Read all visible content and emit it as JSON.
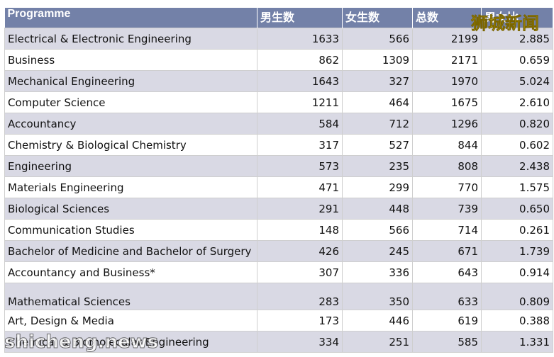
{
  "table": {
    "headers": [
      "Programme",
      "男生数",
      "女生数",
      "总数",
      "男女比"
    ],
    "rows": [
      {
        "programme": "Electrical & Electronic Engineering",
        "male": "1633",
        "female": "566",
        "total": "2199",
        "ratio": "2.885"
      },
      {
        "programme": "Business",
        "male": "862",
        "female": "1309",
        "total": "2171",
        "ratio": "0.659"
      },
      {
        "programme": "Mechanical Engineering",
        "male": "1643",
        "female": "327",
        "total": "1970",
        "ratio": "5.024"
      },
      {
        "programme": "Computer Science",
        "male": "1211",
        "female": "464",
        "total": "1675",
        "ratio": "2.610"
      },
      {
        "programme": "Accountancy",
        "male": "584",
        "female": "712",
        "total": "1296",
        "ratio": "0.820"
      },
      {
        "programme": "Chemistry & Biological Chemistry",
        "male": "317",
        "female": "527",
        "total": "844",
        "ratio": "0.602"
      },
      {
        "programme": "Engineering",
        "male": "573",
        "female": "235",
        "total": "808",
        "ratio": "2.438"
      },
      {
        "programme": "Materials Engineering",
        "male": "471",
        "female": "299",
        "total": "770",
        "ratio": "1.575"
      },
      {
        "programme": "Biological Sciences",
        "male": "291",
        "female": "448",
        "total": "739",
        "ratio": "0.650"
      },
      {
        "programme": "Communication Studies",
        "male": "148",
        "female": "566",
        "total": "714",
        "ratio": "0.261"
      },
      {
        "programme": "Bachelor of Medicine and Bachelor of Surgery",
        "male": "426",
        "female": "245",
        "total": "671",
        "ratio": "1.739"
      },
      {
        "programme": "Accountancy and Business*",
        "male": "307",
        "female": "336",
        "total": "643",
        "ratio": "0.914"
      },
      {
        "programme": "Mathematical Sciences",
        "male": "283",
        "female": "350",
        "total": "633",
        "ratio": "0.809"
      },
      {
        "programme": "Art, Design & Media",
        "male": "173",
        "female": "446",
        "total": "619",
        "ratio": "0.388"
      },
      {
        "programme": "Chemical & Biomolecular Engineering",
        "male": "334",
        "female": "251",
        "total": "585",
        "ratio": "1.331"
      }
    ]
  },
  "watermarks": {
    "chinese": "狮城新闻",
    "english": "shicheng.news"
  },
  "colors": {
    "header_bg": "#7381a8",
    "row_shade": "#d9d9e4",
    "watermark": "#f4d61e"
  }
}
